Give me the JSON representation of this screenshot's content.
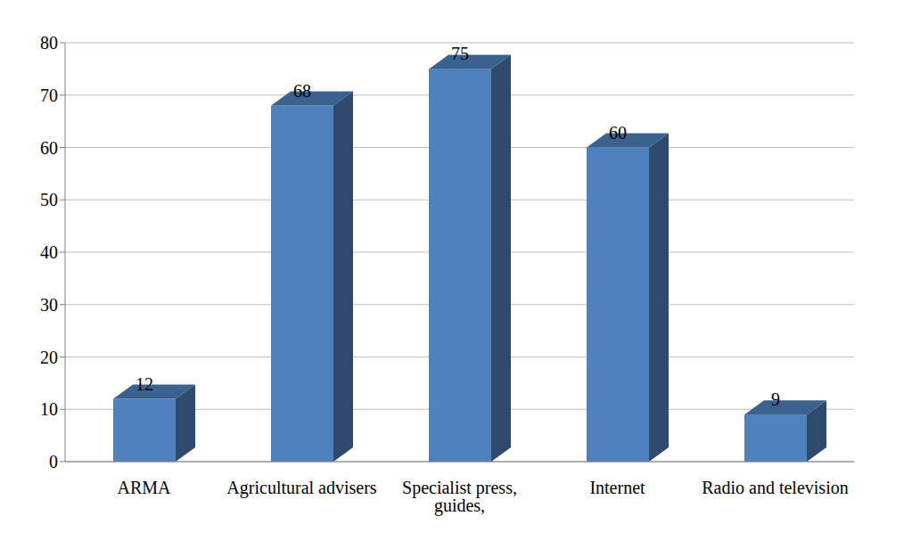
{
  "chart_data": {
    "type": "bar",
    "categories": [
      "ARMA",
      "Agricultural advisers",
      "Specialist press, guides,",
      "Internet",
      "Radio and television"
    ],
    "values": [
      12,
      68,
      75,
      60,
      9
    ],
    "color": "#4f81bd",
    "ylim": [
      0,
      80
    ],
    "yticks": [
      0,
      10,
      20,
      30,
      40,
      50,
      60,
      70,
      80
    ],
    "grid": true,
    "data_labels": true
  }
}
